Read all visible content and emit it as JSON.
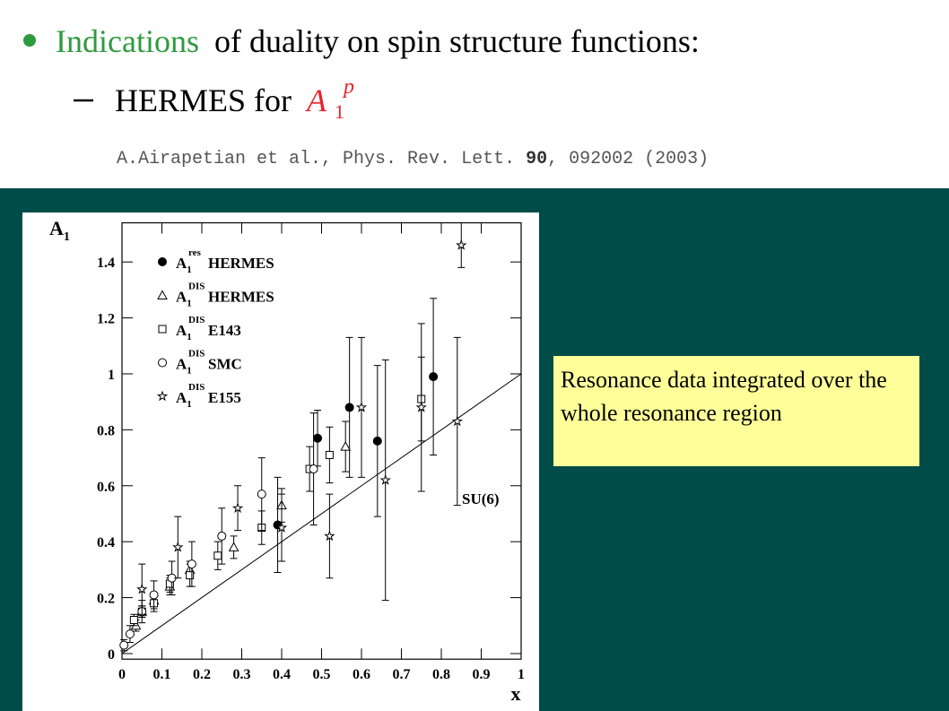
{
  "header": {
    "bullet_highlight": "Indications",
    "bullet_rest": "of duality on spin structure functions:",
    "sub_bullet": "HERMES for",
    "sub_symbol": "A",
    "sub_sub": "1",
    "sub_sup": "p",
    "citation_start": "A.Airapetian et al., Phys. Rev. Lett.",
    "citation_volume": "90",
    "citation_end": ", 092002 (2003)"
  },
  "callout": "Resonance data integrated over the whole resonance region",
  "chart_data": {
    "type": "scatter",
    "y_label": "A",
    "y_label_sub": "1",
    "x_label": "x",
    "xlim": [
      0,
      1
    ],
    "ylim": [
      -0.02,
      1.54
    ],
    "xticks": [
      0,
      0.1,
      0.2,
      0.3,
      0.4,
      0.5,
      0.6,
      0.7,
      0.8,
      0.9,
      1
    ],
    "yticks": [
      0,
      0.2,
      0.4,
      0.6,
      0.8,
      1,
      1.2,
      1.4
    ],
    "series": [
      {
        "name": "HERMES",
        "symbol": "A",
        "sub": "1",
        "sup": "res",
        "marker": "filled-circle",
        "color": "#000000",
        "x": [
          0.39,
          0.49,
          0.57,
          0.64,
          0.78
        ],
        "values": [
          0.46,
          0.77,
          0.88,
          0.76,
          0.99
        ],
        "errors": [
          0.17,
          0.1,
          0.25,
          0.27,
          0.28
        ]
      },
      {
        "name": "HERMES",
        "symbol": "A",
        "sub": "1",
        "sup": "DIS",
        "marker": "triangle",
        "color": "#000000",
        "x": [
          0.035,
          0.05,
          0.08,
          0.12,
          0.17,
          0.28,
          0.4,
          0.56
        ],
        "values": [
          0.1,
          0.15,
          0.19,
          0.24,
          0.3,
          0.38,
          0.53,
          0.74
        ],
        "errors": [
          0.02,
          0.02,
          0.02,
          0.03,
          0.03,
          0.04,
          0.06,
          0.09
        ]
      },
      {
        "name": "E143",
        "symbol": "A",
        "sub": "1",
        "sup": "DIS",
        "marker": "square",
        "color": "#000000",
        "x": [
          0.03,
          0.05,
          0.08,
          0.12,
          0.17,
          0.24,
          0.35,
          0.47,
          0.52,
          0.75
        ],
        "values": [
          0.12,
          0.15,
          0.18,
          0.25,
          0.28,
          0.35,
          0.45,
          0.66,
          0.71,
          0.91
        ],
        "errors": [
          0.02,
          0.02,
          0.03,
          0.03,
          0.04,
          0.05,
          0.06,
          0.08,
          0.1,
          0.15
        ]
      },
      {
        "name": "SMC",
        "symbol": "A",
        "sub": "1",
        "sup": "DIS",
        "marker": "circle",
        "color": "#000000",
        "x": [
          0.005,
          0.02,
          0.05,
          0.08,
          0.125,
          0.175,
          0.25,
          0.35,
          0.48
        ],
        "values": [
          0.03,
          0.07,
          0.15,
          0.21,
          0.27,
          0.32,
          0.42,
          0.57,
          0.66
        ],
        "errors": [
          0.02,
          0.03,
          0.04,
          0.05,
          0.06,
          0.08,
          0.1,
          0.13,
          0.2
        ]
      },
      {
        "name": "E155",
        "symbol": "A",
        "sub": "1",
        "sup": "DIS",
        "marker": "star",
        "color": "#000000",
        "x": [
          0.05,
          0.14,
          0.29,
          0.4,
          0.52,
          0.6,
          0.66,
          0.75,
          0.84,
          0.85
        ],
        "values": [
          0.23,
          0.38,
          0.52,
          0.45,
          0.42,
          0.88,
          0.62,
          0.88,
          0.83,
          1.46
        ],
        "errors": [
          0.09,
          0.11,
          0.08,
          0.12,
          0.15,
          0.25,
          0.43,
          0.3,
          0.3,
          0.08
        ]
      }
    ],
    "lines": [
      {
        "name": "SU(6)",
        "color": "#000000",
        "x": [
          0,
          1
        ],
        "values": [
          0,
          1
        ]
      }
    ]
  }
}
